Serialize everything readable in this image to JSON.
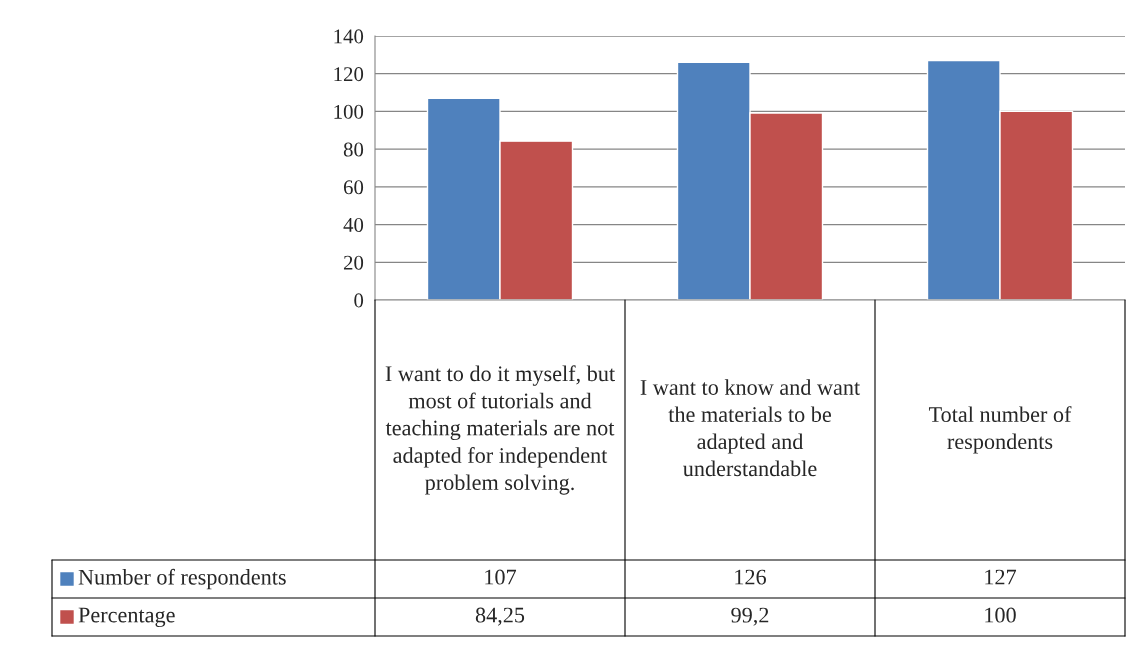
{
  "chart_data": {
    "type": "bar",
    "categories": [
      "I want to do it myself, but most of tutorials and teaching materials are not adapted for independent problem solving.",
      "I want to know and want the materials to be adapted and understandable",
      "Total number of respondents"
    ],
    "series": [
      {
        "name": "Number of respondents",
        "color": "#4f81bd",
        "values": [
          107,
          126,
          127
        ],
        "value_labels": [
          "107",
          "126",
          "127"
        ]
      },
      {
        "name": "Percentage",
        "color": "#c0504d",
        "values": [
          84.25,
          99.2,
          100
        ],
        "value_labels": [
          "84,25",
          "99,2",
          "100"
        ]
      }
    ],
    "ylim": [
      0,
      140
    ],
    "yticks": [
      0,
      20,
      40,
      60,
      80,
      100,
      120,
      140
    ],
    "grid": "y",
    "legend": "bottom"
  }
}
